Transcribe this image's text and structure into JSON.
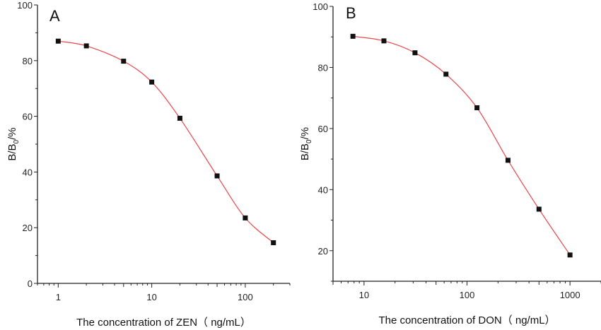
{
  "chart_data": [
    {
      "type": "scatter",
      "panel_label": "A",
      "xlabel": "The concentration of ZEN（ ng/mL）",
      "ylabel_main": "B/B",
      "ylabel_sub": "0",
      "ylabel_tail": "/%",
      "xscale": "log",
      "xlim": [
        0.6,
        300
      ],
      "ylim": [
        0,
        100
      ],
      "xticks": [
        1,
        10,
        100
      ],
      "xtick_labels": [
        "1",
        "10",
        "100"
      ],
      "yticks": [
        0,
        20,
        40,
        60,
        80,
        100
      ],
      "ytick_labels": [
        "0",
        "20",
        "40",
        "60",
        "80",
        "100"
      ],
      "grid": false,
      "fit_curve": true,
      "x": [
        1,
        2,
        5,
        10,
        20,
        50,
        100,
        200
      ],
      "y": [
        87.0,
        85.3,
        79.8,
        72.3,
        59.3,
        38.6,
        23.5,
        14.6
      ]
    },
    {
      "type": "scatter",
      "panel_label": "B",
      "xlabel": "The concentration of DON（ ng/mL）",
      "ylabel_main": "B/B",
      "ylabel_sub": "0",
      "ylabel_tail": "/%",
      "xscale": "log",
      "xlim": [
        5,
        2000
      ],
      "ylim": [
        10,
        100
      ],
      "xticks": [
        10,
        100,
        1000
      ],
      "xtick_labels": [
        "10",
        "100",
        "1000"
      ],
      "yticks": [
        20,
        40,
        60,
        80,
        100
      ],
      "ytick_labels": [
        "20",
        "40",
        "60",
        "80",
        "100"
      ],
      "grid": false,
      "fit_curve": true,
      "x": [
        7.8,
        15.6,
        31.25,
        62.5,
        125,
        250,
        500,
        1000
      ],
      "y": [
        90.2,
        88.7,
        84.8,
        77.8,
        66.8,
        49.6,
        33.6,
        18.6
      ]
    }
  ],
  "colors": {
    "curve": "#e8474a",
    "marker": "#111111",
    "axis": "#222222"
  }
}
